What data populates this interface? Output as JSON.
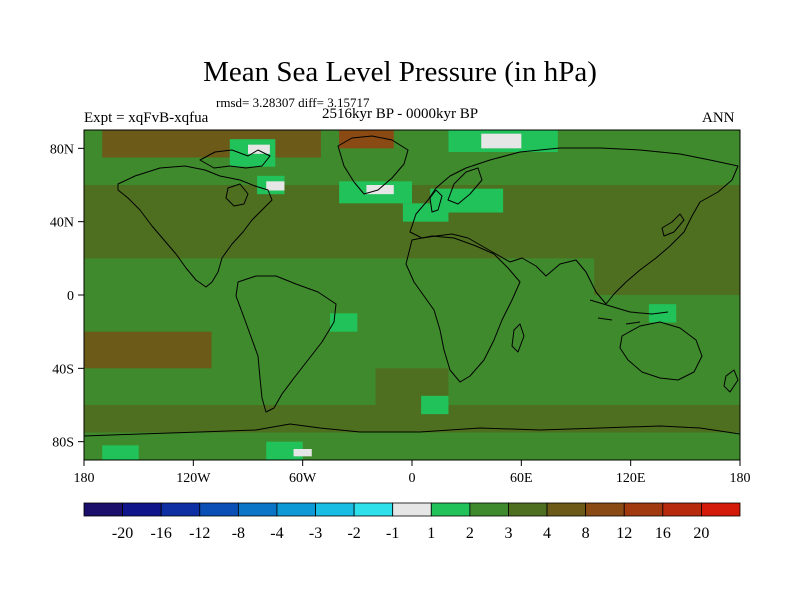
{
  "title": "Mean Sea Level Pressure (in hPa)",
  "stats": "rmsd= 3.28307 diff= 3.15717",
  "period": "2516kyr BP - 0000kyr BP",
  "experiment": "Expt = xqFvB-xqfua",
  "season": "ANN",
  "chart_data": {
    "type": "heatmap",
    "title": "Mean Sea Level Pressure (in hPa)",
    "xlabel": "",
    "ylabel": "",
    "xlim": [
      -180,
      180
    ],
    "ylim": [
      -90,
      90
    ],
    "x_ticks": [
      {
        "value": -180,
        "label": "180"
      },
      {
        "value": -120,
        "label": "120W"
      },
      {
        "value": -60,
        "label": "60W"
      },
      {
        "value": 0,
        "label": "0"
      },
      {
        "value": 60,
        "label": "60E"
      },
      {
        "value": 120,
        "label": "120E"
      },
      {
        "value": 180,
        "label": "180"
      }
    ],
    "y_ticks": [
      {
        "value": 80,
        "label": "80N"
      },
      {
        "value": 40,
        "label": "40N"
      },
      {
        "value": 0,
        "label": "0"
      },
      {
        "value": -40,
        "label": "40S"
      },
      {
        "value": -80,
        "label": "80S"
      }
    ],
    "colorbar": {
      "labels": [
        "-20",
        "-16",
        "-12",
        "-8",
        "-4",
        "-3",
        "-2",
        "-1",
        "1",
        "2",
        "3",
        "4",
        "8",
        "12",
        "16",
        "20"
      ],
      "colors": [
        "#1c0f6b",
        "#10168a",
        "#0d2fa3",
        "#0a4fb6",
        "#0a74c6",
        "#0d98d6",
        "#19bce3",
        "#2ee0ea",
        "#e6e6e6",
        "#22c25a",
        "#3f8a2c",
        "#4f6f20",
        "#6b5a18",
        "#8a4a14",
        "#a23a10",
        "#b82a0c",
        "#d41a08"
      ]
    },
    "base_category": "3",
    "regions": [
      {
        "lon": [
          -180,
          180
        ],
        "lat": [
          -90,
          90
        ],
        "category": "3"
      },
      {
        "lon": [
          -180,
          180
        ],
        "lat": [
          20,
          60
        ],
        "category": "4"
      },
      {
        "lon": [
          -180,
          -110
        ],
        "lat": [
          -40,
          -20
        ],
        "category": "8"
      },
      {
        "lon": [
          -20,
          20
        ],
        "lat": [
          -70,
          -40
        ],
        "category": "4"
      },
      {
        "lon": [
          -180,
          180
        ],
        "lat": [
          -75,
          -60
        ],
        "category": "4"
      },
      {
        "lon": [
          100,
          180
        ],
        "lat": [
          0,
          30
        ],
        "category": "4"
      },
      {
        "lon": [
          -170,
          -50
        ],
        "lat": [
          75,
          90
        ],
        "category": "8"
      },
      {
        "lon": [
          -40,
          -10
        ],
        "lat": [
          80,
          90
        ],
        "category": "12"
      },
      {
        "lon": [
          -100,
          -75
        ],
        "lat": [
          70,
          85
        ],
        "category": "2"
      },
      {
        "lon": [
          -85,
          -70
        ],
        "lat": [
          55,
          65
        ],
        "category": "2"
      },
      {
        "lon": [
          -40,
          0
        ],
        "lat": [
          50,
          62
        ],
        "category": "2"
      },
      {
        "lon": [
          10,
          50
        ],
        "lat": [
          45,
          58
        ],
        "category": "2"
      },
      {
        "lon": [
          -5,
          20
        ],
        "lat": [
          40,
          50
        ],
        "category": "2"
      },
      {
        "lon": [
          20,
          80
        ],
        "lat": [
          78,
          90
        ],
        "category": "2"
      },
      {
        "lon": [
          -80,
          -60
        ],
        "lat": [
          -90,
          -80
        ],
        "category": "2"
      },
      {
        "lon": [
          -170,
          -150
        ],
        "lat": [
          -90,
          -82
        ],
        "category": "2"
      },
      {
        "lon": [
          5,
          20
        ],
        "lat": [
          -65,
          -55
        ],
        "category": "2"
      },
      {
        "lon": [
          -45,
          -30
        ],
        "lat": [
          -20,
          -10
        ],
        "category": "2"
      },
      {
        "lon": [
          130,
          145
        ],
        "lat": [
          -15,
          -5
        ],
        "category": "2"
      },
      {
        "lon": [
          38,
          60
        ],
        "lat": [
          80,
          88
        ],
        "category": "1"
      },
      {
        "lon": [
          -80,
          -70
        ],
        "lat": [
          57,
          62
        ],
        "category": "1"
      },
      {
        "lon": [
          -25,
          -10
        ],
        "lat": [
          55,
          60
        ],
        "category": "1"
      },
      {
        "lon": [
          -65,
          -55
        ],
        "lat": [
          -88,
          -84
        ],
        "category": "1"
      },
      {
        "lon": [
          -90,
          -78
        ],
        "lat": [
          77,
          82
        ],
        "category": "1"
      }
    ]
  }
}
